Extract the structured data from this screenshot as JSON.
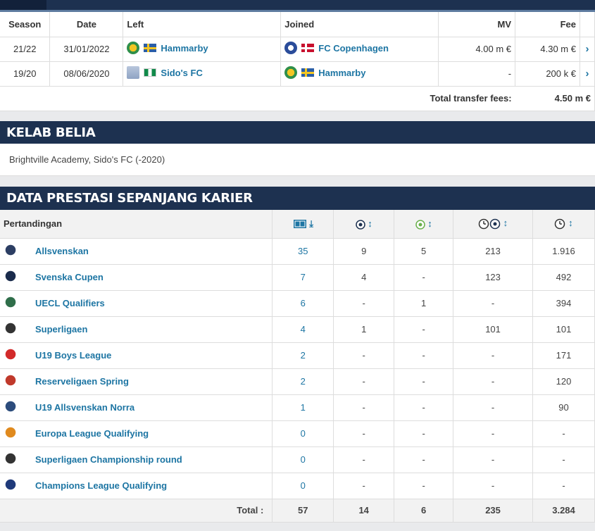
{
  "transfers": {
    "headers": {
      "season": "Season",
      "date": "Date",
      "left": "Left",
      "joined": "Joined",
      "mv": "MV",
      "fee": "Fee"
    },
    "rows": [
      {
        "season": "21/22",
        "date": "31/01/2022",
        "left_club": "Hammarby",
        "left_flag": "Sweden",
        "joined_club": "FC Copenhagen",
        "joined_flag": "Denmark",
        "mv": "4.00 m €",
        "fee": "4.30 m €"
      },
      {
        "season": "19/20",
        "date": "08/06/2020",
        "left_club": "Sido's FC",
        "left_flag": "Nigeria",
        "joined_club": "Hammarby",
        "joined_flag": "Sweden",
        "mv": "-",
        "fee": "200 k €"
      }
    ],
    "total_label": "Total transfer fees:",
    "total_value": "4.50 m €"
  },
  "youth": {
    "title": "KELAB BELIA",
    "text": "Brightville Academy, Sido's FC (-2020)"
  },
  "career": {
    "title": "DATA PRESTASI SEPANJANG KARIER",
    "column_label": "Pertandingan",
    "icons": [
      "appearances-icon",
      "goals-icon",
      "assists-icon",
      "minutes-per-goal-icon",
      "minutes-played-icon"
    ],
    "rows": [
      {
        "name": "Allsvenskan",
        "apps": "35",
        "goals": "9",
        "assists": "5",
        "mpg": "213",
        "mins": "1.916",
        "logo_color": "#2c3e63"
      },
      {
        "name": "Svenska Cupen",
        "apps": "7",
        "goals": "4",
        "assists": "-",
        "mpg": "123",
        "mins": "492",
        "logo_color": "#1a2b4c"
      },
      {
        "name": "UECL Qualifiers",
        "apps": "6",
        "goals": "-",
        "assists": "1",
        "mpg": "-",
        "mins": "394",
        "logo_color": "#2f6e4a"
      },
      {
        "name": "Superligaen",
        "apps": "4",
        "goals": "1",
        "assists": "-",
        "mpg": "101",
        "mins": "101",
        "logo_color": "#333333"
      },
      {
        "name": "U19 Boys League",
        "apps": "2",
        "goals": "-",
        "assists": "-",
        "mpg": "-",
        "mins": "171",
        "logo_color": "#d22a2a"
      },
      {
        "name": "Reserveligaen Spring",
        "apps": "2",
        "goals": "-",
        "assists": "-",
        "mpg": "-",
        "mins": "120",
        "logo_color": "#c0392b"
      },
      {
        "name": "U19 Allsvenskan Norra",
        "apps": "1",
        "goals": "-",
        "assists": "-",
        "mpg": "-",
        "mins": "90",
        "logo_color": "#2c4c7c"
      },
      {
        "name": "Europa League Qualifying",
        "apps": "0",
        "goals": "-",
        "assists": "-",
        "mpg": "-",
        "mins": "-",
        "logo_color": "#e08a1e"
      },
      {
        "name": "Superligaen Championship round",
        "apps": "0",
        "goals": "-",
        "assists": "-",
        "mpg": "-",
        "mins": "-",
        "logo_color": "#333333"
      },
      {
        "name": "Champions League Qualifying",
        "apps": "0",
        "goals": "-",
        "assists": "-",
        "mpg": "-",
        "mins": "-",
        "logo_color": "#1f3a7a"
      }
    ],
    "total": {
      "label": "Total :",
      "apps": "57",
      "goals": "14",
      "assists": "6",
      "mpg": "235",
      "mins": "3.284"
    }
  },
  "colors": {
    "header_bg": "#1d3150",
    "link": "#1d75a3"
  }
}
